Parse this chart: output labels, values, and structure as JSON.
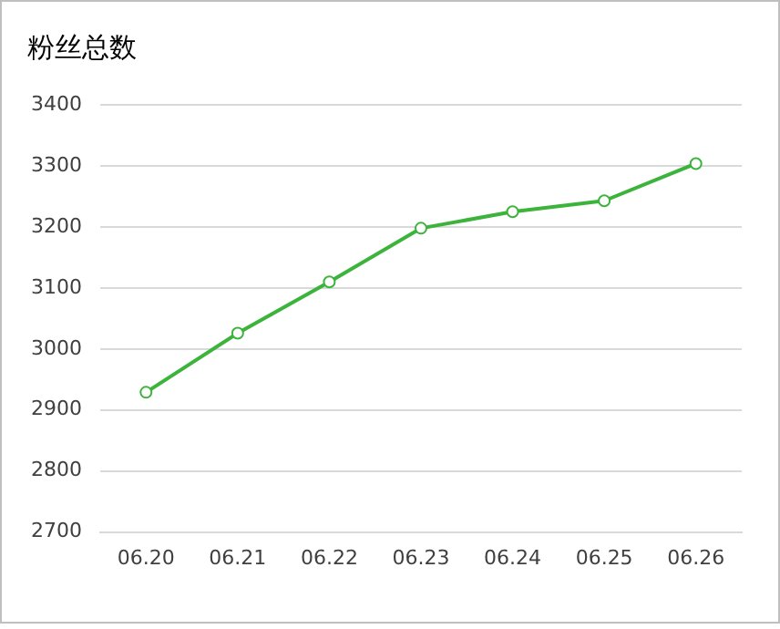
{
  "chart_data": {
    "type": "line",
    "title": "粉丝总数",
    "categories": [
      "06.20",
      "06.21",
      "06.22",
      "06.23",
      "06.24",
      "06.25",
      "06.26"
    ],
    "series": [
      {
        "color": "#3cb43c",
        "values": [
          2929,
          3026,
          3110,
          3198,
          3225,
          3243,
          3304
        ]
      }
    ],
    "ylim": [
      2700,
      3400
    ],
    "yticks": [
      2700,
      2800,
      2900,
      3000,
      3100,
      3200,
      3300,
      3400
    ],
    "grid": "y",
    "legend": false,
    "marker": "circle",
    "line_style": "solid"
  }
}
